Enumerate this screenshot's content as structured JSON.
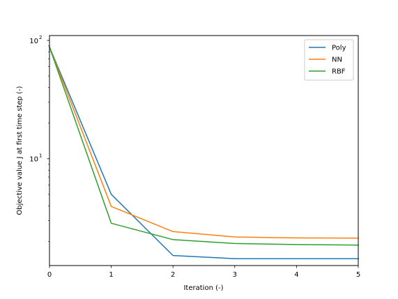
{
  "chart_data": {
    "type": "line",
    "title": "",
    "xlabel": "Iteration (-)",
    "ylabel": "Objective value J at first time step (-)",
    "yscale": "log",
    "xlim": [
      0,
      5
    ],
    "ylim": [
      1.25,
      110
    ],
    "grid": false,
    "legend_position": "top-right",
    "x": [
      0,
      1,
      2,
      3,
      4,
      5
    ],
    "x_ticks": [
      "0",
      "1",
      "2",
      "3",
      "4",
      "5"
    ],
    "y_ticks": [
      {
        "value": 10,
        "base": "10",
        "exp": "1"
      },
      {
        "value": 100,
        "base": "10",
        "exp": "2"
      }
    ],
    "series": [
      {
        "name": "Poly",
        "color": "#1f77b4",
        "values": [
          88,
          5.0,
          1.52,
          1.43,
          1.43,
          1.43
        ]
      },
      {
        "name": "NN",
        "color": "#ff7f0e",
        "values": [
          88,
          3.95,
          2.42,
          2.18,
          2.14,
          2.13
        ]
      },
      {
        "name": "RBF",
        "color": "#2ca02c",
        "values": [
          88,
          2.85,
          2.07,
          1.92,
          1.88,
          1.86
        ]
      }
    ]
  }
}
